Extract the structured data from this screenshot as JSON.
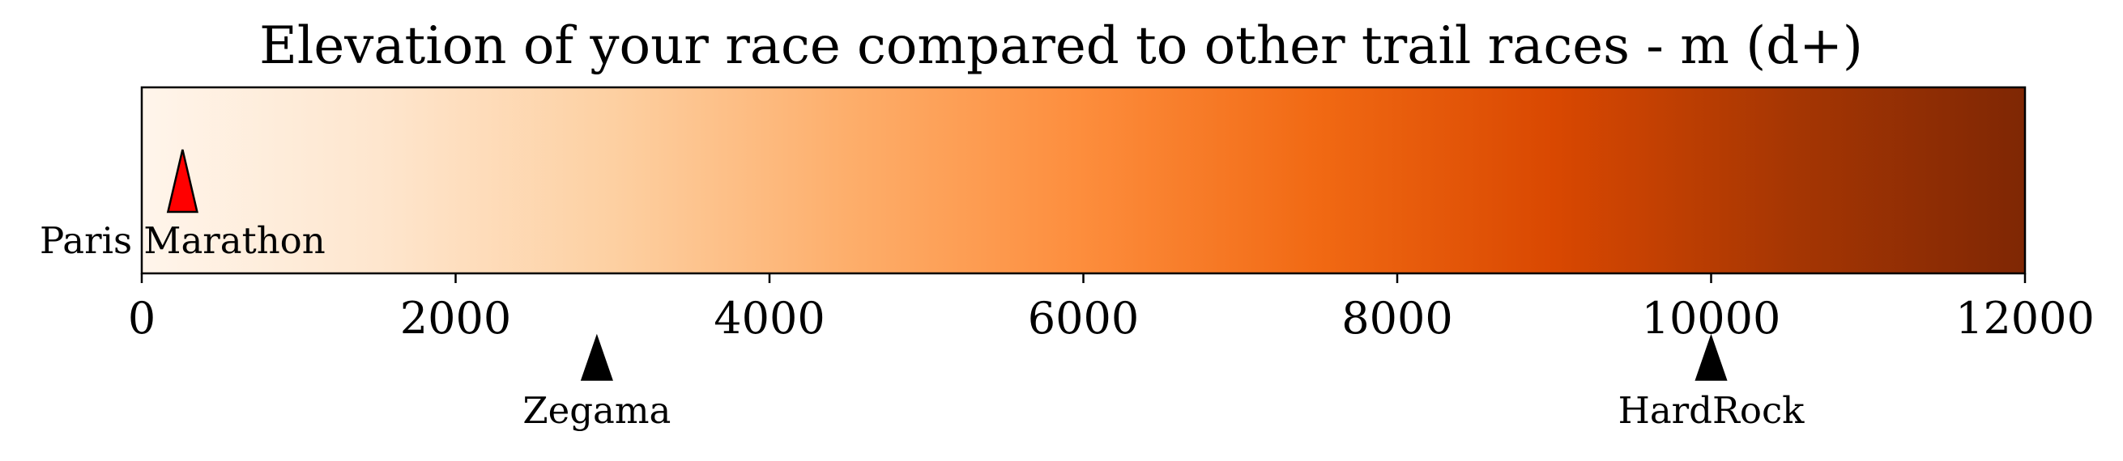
{
  "chart_data": {
    "type": "colorbar",
    "title": "Elevation of your race compared to other trail races - m (d+)",
    "xlim": [
      0,
      12000
    ],
    "ticks": [
      0,
      2000,
      4000,
      6000,
      8000,
      10000,
      12000
    ],
    "tick_labels": [
      "0",
      "2000",
      "4000",
      "6000",
      "8000",
      "10000",
      "12000"
    ],
    "colormap": "Oranges",
    "gradient_colors": [
      "#fff5eb",
      "#fee6ce",
      "#fdd0a2",
      "#fdae6b",
      "#fd8d3c",
      "#f16913",
      "#d94801",
      "#a63603",
      "#7f2704"
    ],
    "your_race": {
      "label": "Paris Marathon",
      "value": 260,
      "color": "#ff0000",
      "position": "inside-bar"
    },
    "reference_races": [
      {
        "label": "Zegama",
        "value": 2900,
        "color": "#000000",
        "position": "below-axis"
      },
      {
        "label": "HardRock",
        "value": 10000,
        "color": "#000000",
        "position": "below-axis"
      }
    ],
    "grid": false,
    "legend": "none"
  }
}
